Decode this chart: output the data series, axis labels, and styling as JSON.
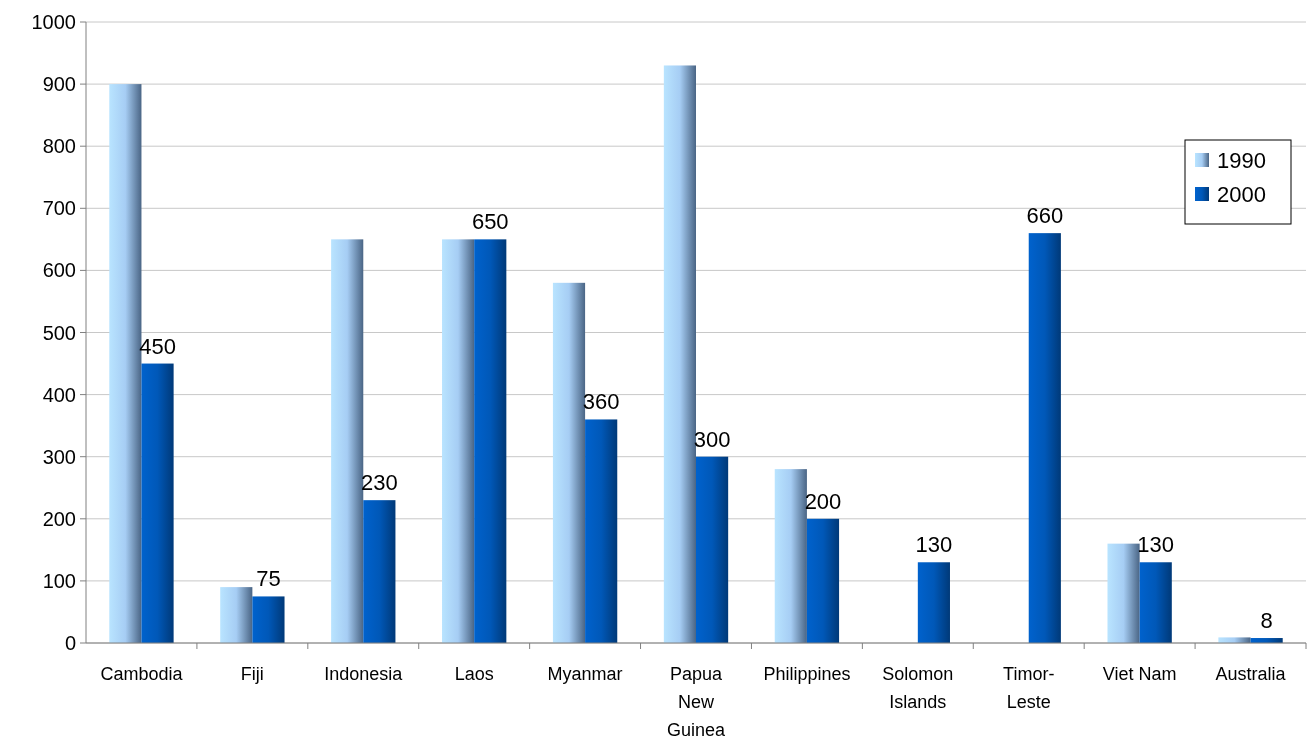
{
  "chart_data": {
    "type": "bar",
    "categories": [
      "Cambodia",
      "Fiji",
      "Indonesia",
      "Laos",
      "Myanmar",
      "Papua New Guinea",
      "Philippines",
      "Solomon Islands",
      "Timor-Leste",
      "Viet Nam",
      "Australia"
    ],
    "series": [
      {
        "name": "1990",
        "color": "#a6cdf4",
        "values": [
          900,
          90,
          650,
          650,
          580,
          930,
          280,
          null,
          null,
          160,
          9
        ]
      },
      {
        "name": "2000",
        "color": "#0058b8",
        "values": [
          450,
          75,
          230,
          650,
          360,
          300,
          200,
          130,
          660,
          130,
          8
        ],
        "value_labels": [
          "450",
          "75",
          "230",
          "650",
          "360",
          "300",
          "200",
          "130",
          "660",
          "130",
          "8"
        ]
      }
    ],
    "ylim": [
      0,
      1000
    ],
    "yticks": [
      0,
      100,
      200,
      300,
      400,
      500,
      600,
      700,
      800,
      900,
      1000
    ],
    "grid": "y",
    "legend": "right"
  }
}
